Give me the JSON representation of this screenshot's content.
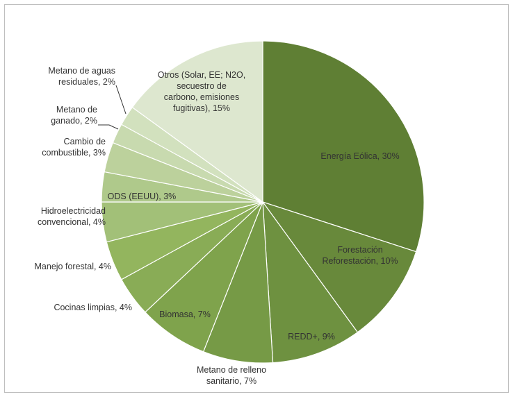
{
  "chart_data": {
    "type": "pie",
    "title": "",
    "start": "top, clockwise",
    "slices": [
      {
        "label": "Energía Eólica, 30%",
        "value": 30,
        "color": "#5f7f34"
      },
      {
        "label": "Forestación Reforestación, 10%",
        "value": 10,
        "color": "#68893b"
      },
      {
        "label": "REDD+, 9%",
        "value": 9,
        "color": "#6e9140"
      },
      {
        "label": "Metano de relleno sanitario, 7%",
        "value": 7,
        "color": "#769a46"
      },
      {
        "label": "Biomasa, 7%",
        "value": 7,
        "color": "#7fa34c"
      },
      {
        "label": "Cocinas limpias, 4%",
        "value": 4,
        "color": "#89ac56"
      },
      {
        "label": "Manejo forestal, 4%",
        "value": 4,
        "color": "#93b55e"
      },
      {
        "label": "Hidroelectricidad convencional, 4%",
        "value": 4,
        "color": "#a2c078"
      },
      {
        "label": "ODS (EEUU), 3%",
        "value": 3,
        "color": "#afc98b"
      },
      {
        "label": "Cambio de combustible, 3%",
        "value": 3,
        "color": "#bcd19c"
      },
      {
        "label": "Metano de ganado, 2%",
        "value": 2,
        "color": "#c8daaf"
      },
      {
        "label": "Metano de aguas residuales, 2%",
        "value": 2,
        "color": "#d2e1be"
      },
      {
        "label": "Otros (Solar, EE; N2O, secuestro de carbono, emisiones fugitivas), 15%",
        "value": 15,
        "color": "#dde7cf"
      }
    ]
  }
}
